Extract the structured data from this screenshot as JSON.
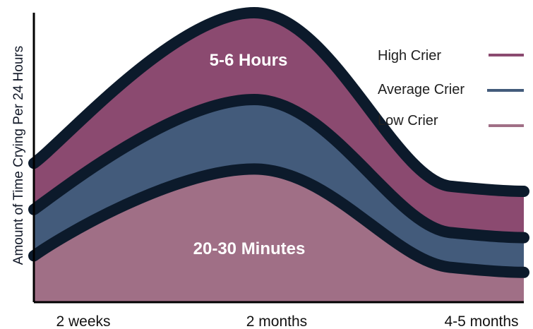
{
  "chart_data": {
    "type": "area",
    "title": "",
    "xlabel": "",
    "ylabel": "Amount of Time Crying Per 24 Hours",
    "categories": [
      "2 weeks",
      "2 months",
      "4-5 months"
    ],
    "series": [
      {
        "name": "High Crier",
        "color": "#8b4a70",
        "values": [
          0.48,
          1.0,
          0.4
        ]
      },
      {
        "name": "Average Crier",
        "color": "#435b7b",
        "values": [
          0.32,
          0.7,
          0.24
        ]
      },
      {
        "name": "Low Crier",
        "color": "#a06f86",
        "values": [
          0.16,
          0.46,
          0.12
        ]
      }
    ],
    "annotations": [
      {
        "label": "5-6 Hours",
        "series": "High Crier"
      },
      {
        "label": "20-30 Minutes",
        "series": "Low Crier"
      }
    ],
    "legend": "top-right",
    "grid": false
  }
}
